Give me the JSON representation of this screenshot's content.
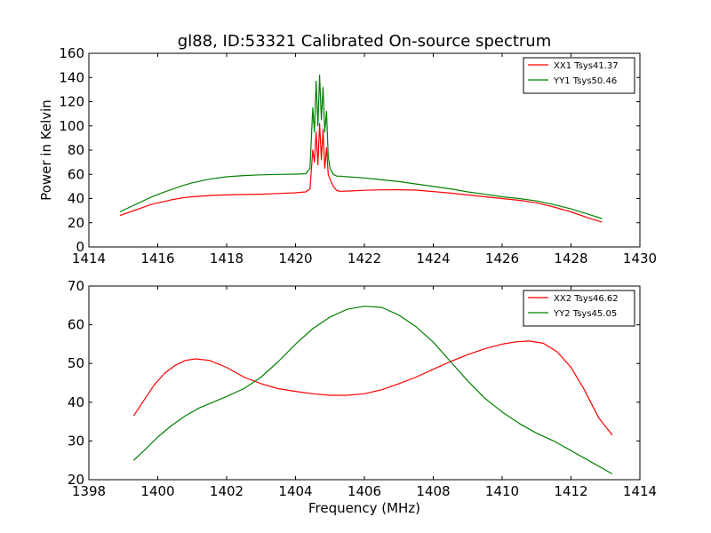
{
  "figure_title": "gl88, ID:53321 Calibrated On-source spectrum",
  "colors": {
    "XX": "#ff0000",
    "YY": "#008000",
    "axes": "#000000",
    "background": "#ffffff"
  },
  "chart_data": [
    {
      "type": "line",
      "title": "gl88, ID:53321 Calibrated On-source spectrum",
      "xlabel": "",
      "ylabel": "Power in Kelvin",
      "xlim": [
        1414,
        1430
      ],
      "ylim": [
        0,
        160
      ],
      "xticks": [
        1414,
        1416,
        1418,
        1420,
        1422,
        1424,
        1426,
        1428,
        1430
      ],
      "yticks": [
        0,
        20,
        40,
        60,
        80,
        100,
        120,
        140,
        160
      ],
      "grid": false,
      "legend_position": "top-right",
      "series": [
        {
          "name": "XX1 Tsys41.37",
          "color": "#ff0000",
          "x": [
            1414.9,
            1415.2,
            1415.5,
            1415.8,
            1416.1,
            1416.4,
            1416.7,
            1417.0,
            1417.5,
            1418.0,
            1418.5,
            1419.0,
            1419.5,
            1420.0,
            1420.3,
            1420.42,
            1420.5,
            1420.55,
            1420.6,
            1420.65,
            1420.7,
            1420.75,
            1420.8,
            1420.85,
            1420.9,
            1420.95,
            1421.0,
            1421.1,
            1421.2,
            1421.3,
            1421.5,
            1422.0,
            1422.5,
            1423.0,
            1423.5,
            1424.0,
            1424.5,
            1425.0,
            1425.5,
            1426.0,
            1426.5,
            1427.0,
            1427.5,
            1428.0,
            1428.5,
            1428.9
          ],
          "y": [
            26,
            29,
            32,
            35,
            37,
            39,
            40.5,
            41.5,
            42.5,
            43,
            43.3,
            43.6,
            44.2,
            44.8,
            45.5,
            48,
            80,
            70,
            95,
            68,
            102,
            72,
            97,
            65,
            82,
            60,
            56,
            50,
            46.5,
            46,
            46.2,
            46.8,
            47.2,
            47.3,
            47,
            45.8,
            44.5,
            43,
            41.5,
            40,
            38.5,
            36.5,
            33,
            29,
            24,
            20.5
          ]
        },
        {
          "name": "YY1 Tsys50.46",
          "color": "#008000",
          "x": [
            1414.9,
            1415.2,
            1415.5,
            1415.8,
            1416.1,
            1416.4,
            1416.7,
            1417.0,
            1417.5,
            1418.0,
            1418.5,
            1419.0,
            1419.5,
            1420.0,
            1420.3,
            1420.42,
            1420.5,
            1420.55,
            1420.6,
            1420.65,
            1420.7,
            1420.75,
            1420.8,
            1420.85,
            1420.9,
            1420.95,
            1421.0,
            1421.1,
            1421.2,
            1421.3,
            1421.5,
            1422.0,
            1422.5,
            1423.0,
            1423.5,
            1424.0,
            1424.5,
            1425.0,
            1425.5,
            1426.0,
            1426.5,
            1427.0,
            1427.5,
            1428.0,
            1428.5,
            1428.9
          ],
          "y": [
            29,
            33,
            37,
            41,
            44.5,
            47.5,
            50.5,
            53,
            56,
            58,
            59,
            59.6,
            60,
            60.2,
            60.5,
            65,
            115,
            95,
            137,
            100,
            142,
            105,
            132,
            95,
            112,
            75,
            65,
            60,
            58.5,
            58.5,
            58,
            57,
            55.5,
            54,
            52,
            50,
            48,
            45.5,
            43.5,
            41.5,
            40,
            38,
            35,
            31.5,
            27,
            23.5
          ]
        }
      ]
    },
    {
      "type": "line",
      "title": "",
      "xlabel": "Frequency (MHz)",
      "ylabel": "",
      "xlim": [
        1398,
        1414
      ],
      "ylim": [
        20,
        70
      ],
      "xticks": [
        1398,
        1400,
        1402,
        1404,
        1406,
        1408,
        1410,
        1412,
        1414
      ],
      "yticks": [
        20,
        30,
        40,
        50,
        60,
        70
      ],
      "grid": false,
      "legend_position": "top-right",
      "series": [
        {
          "name": "XX2 Tsys46.62",
          "color": "#ff0000",
          "x": [
            1399.3,
            1399.6,
            1399.9,
            1400.2,
            1400.5,
            1400.8,
            1401.1,
            1401.5,
            1402.0,
            1402.5,
            1403.0,
            1403.5,
            1404.0,
            1404.5,
            1405.0,
            1405.5,
            1406.0,
            1406.5,
            1407.0,
            1407.5,
            1408.0,
            1408.5,
            1409.0,
            1409.5,
            1410.0,
            1410.4,
            1410.8,
            1411.2,
            1411.6,
            1412.0,
            1412.4,
            1412.8,
            1413.2
          ],
          "y": [
            36.5,
            40.5,
            44.5,
            47.5,
            49.5,
            50.8,
            51.2,
            50.8,
            49,
            46.5,
            44.8,
            43.5,
            42.8,
            42.2,
            41.8,
            41.8,
            42.2,
            43.2,
            44.8,
            46.5,
            48.5,
            50.5,
            52.3,
            53.8,
            55,
            55.6,
            55.8,
            55.2,
            53,
            49,
            43,
            36,
            31.5
          ]
        },
        {
          "name": "YY2 Tsys45.05",
          "color": "#008000",
          "x": [
            1399.3,
            1399.6,
            1400.0,
            1400.4,
            1400.8,
            1401.2,
            1401.6,
            1402.0,
            1402.5,
            1403.0,
            1403.5,
            1404.0,
            1404.5,
            1405.0,
            1405.5,
            1406.0,
            1406.5,
            1407.0,
            1407.5,
            1408.0,
            1408.5,
            1409.0,
            1409.5,
            1410.0,
            1410.5,
            1411.0,
            1411.5,
            1412.0,
            1412.5,
            1413.0,
            1413.2
          ],
          "y": [
            25,
            27.5,
            31,
            34,
            36.5,
            38.5,
            40,
            41.5,
            43.5,
            46.5,
            50.5,
            55,
            59,
            62,
            64,
            64.8,
            64.5,
            62.5,
            59.5,
            55.5,
            50.5,
            45.5,
            41,
            37.5,
            34.5,
            32,
            30,
            27.5,
            25,
            22.5,
            21.5
          ]
        }
      ]
    }
  ]
}
